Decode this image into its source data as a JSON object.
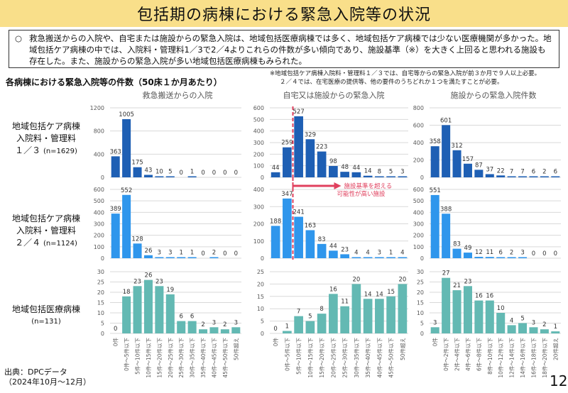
{
  "header": {
    "title": "包括期の病棟における緊急入院等の状況"
  },
  "summary": {
    "bullet": "○",
    "text": "救急搬送からの入院や、自宅または施設からの緊急入院は、地域包括医療病棟では多く、地域包括ケア病棟では少ない医療機関が多かった。地域包括ケア病棟の中では、入院料・管理料1／3で2／4よりこれらの件数が多い傾向であり、施設基準（※）を大きく上回ると思われる施設も存在した。また、施設からの緊急入院が多い地域包括医療病棟もみられた。"
  },
  "note": {
    "line1": "※地域包括ケア病棟入院料・管理料１／３では、自宅等からの緊急入院が前３か月で９人以上必要。",
    "line2": "２／４では、在宅医療の提供等、他の要件のうちどれか１つを満たすことが必要。"
  },
  "subtitle": "各病棟における緊急入院等の件数（50床１か月あたり）",
  "columns": [
    {
      "title": "救急搬送からの入院"
    },
    {
      "title": "自宅又は施設からの緊急入院"
    },
    {
      "title": "施設からの緊急入院件数"
    }
  ],
  "rows": [
    {
      "line1": "地域包括ケア病棟",
      "line2": "入院料・管理料",
      "line3": "１／３",
      "n": "(n=1629)"
    },
    {
      "line1": "地域包括ケア病棟",
      "line2": "入院料・管理料",
      "line3": "２／４",
      "n": "(n=1124)"
    },
    {
      "line1": "地域包括医療病棟",
      "line2": "",
      "line3": "",
      "n": "(n=131)"
    }
  ],
  "annotation": {
    "text_line1": "施設基準を超える",
    "text_line2": "可能性が高い施設",
    "color": "#e0405e"
  },
  "colors": {
    "row1": "#1e5fb4",
    "row2": "#2f96ec",
    "row3": "#63b9b3",
    "grid": "#d9d9d9",
    "axis_text": "#595959"
  },
  "source": {
    "line1": "出典：DPCデータ",
    "line2": "（2024年10月～12月）"
  },
  "page_number": "12",
  "chart_data": [
    {
      "type": "bar",
      "id": "r1c1",
      "title": "救急搬送からの入院",
      "row": "地域包括ケア病棟 入院料・管理料 1／3 (n=1629)",
      "categories": [
        "0件",
        "0件～5件以下",
        "5件～10件以下",
        "10件～15件以下",
        "15件～20件以下",
        "20件～25件以下",
        "25件～30件以下",
        "30件～35件以下",
        "35件～40件以下",
        "40件～45件以下",
        "45件～50件以下",
        "50件超え"
      ],
      "values": [
        363,
        1005,
        175,
        43,
        10,
        5,
        0,
        1,
        0,
        0,
        0,
        0
      ],
      "ylim": [
        0,
        1200
      ],
      "yticks": [
        0,
        400,
        800,
        1200
      ]
    },
    {
      "type": "bar",
      "id": "r1c2",
      "title": "自宅又は施設からの緊急入院",
      "row": "地域包括ケア病棟 入院料・管理料 1／3 (n=1629)",
      "categories": [
        "0件",
        "0件～5件以下",
        "5件～10件以下",
        "10件～15件以下",
        "15件～20件以下",
        "20件～25件以下",
        "25件～30件以下",
        "30件～35件以下",
        "35件～40件以下",
        "40件～45件以下",
        "45件～50件以下",
        "50件超え"
      ],
      "values": [
        44,
        259,
        527,
        329,
        223,
        98,
        48,
        44,
        14,
        8,
        5,
        3
      ],
      "ylim": [
        0,
        600
      ],
      "yticks": [
        0,
        100,
        200,
        300,
        400,
        500,
        600
      ],
      "threshold_after_index": 1
    },
    {
      "type": "bar",
      "id": "r1c3",
      "title": "施設からの緊急入院件数",
      "row": "地域包括ケア病棟 入院料・管理料 1／3 (n=1629)",
      "categories": [
        "0件",
        "0件～2件以下",
        "2件～4件以下",
        "4件～6件以下",
        "6件～8件以下",
        "8件～10件以下",
        "10件～12件以下",
        "12件～14件以下",
        "14件～16件以下",
        "16件～18件以下",
        "18件～20件以下",
        "20件超え"
      ],
      "values": [
        358,
        601,
        312,
        157,
        87,
        37,
        22,
        7,
        7,
        6,
        2,
        6
      ],
      "ylim": [
        0,
        800
      ],
      "yticks": [
        0,
        200,
        400,
        600,
        800
      ]
    },
    {
      "type": "bar",
      "id": "r2c1",
      "title": "救急搬送からの入院",
      "row": "地域包括ケア病棟 入院料・管理料 2／4 (n=1124)",
      "categories": [
        "0件",
        "0件～5件以下",
        "5件～10件以下",
        "10件～15件以下",
        "15件～20件以下",
        "20件～25件以下",
        "25件～30件以下",
        "30件～35件以下",
        "35件～40件以下",
        "40件～45件以下",
        "45件～50件以下",
        "50件超え"
      ],
      "values": [
        389,
        552,
        128,
        26,
        3,
        3,
        1,
        1,
        0,
        2,
        0,
        0
      ],
      "ylim": [
        0,
        600
      ],
      "yticks": [
        0,
        100,
        200,
        300,
        400,
        500,
        600
      ]
    },
    {
      "type": "bar",
      "id": "r2c2",
      "title": "自宅又は施設からの緊急入院",
      "row": "地域包括ケア病棟 入院料・管理料 2／4 (n=1124)",
      "categories": [
        "0件",
        "0件～5件以下",
        "5件～10件以下",
        "10件～15件以下",
        "15件～20件以下",
        "20件～25件以下",
        "25件～30件以下",
        "30件～35件以下",
        "35件～40件以下",
        "40件～45件以下",
        "45件～50件以下",
        "50件超え"
      ],
      "values": [
        188,
        347,
        241,
        163,
        83,
        44,
        23,
        4,
        4,
        3,
        1,
        4
      ],
      "ylim": [
        0,
        400
      ],
      "yticks": [
        0,
        100,
        200,
        300,
        400
      ],
      "threshold_after_index": 1,
      "annotation": "施設基準を超える可能性が高い施設"
    },
    {
      "type": "bar",
      "id": "r2c3",
      "title": "施設からの緊急入院件数",
      "row": "地域包括ケア病棟 入院料・管理料 2／4 (n=1124)",
      "categories": [
        "0件",
        "0件～2件以下",
        "2件～4件以下",
        "4件～6件以下",
        "6件～8件以下",
        "8件～10件以下",
        "10件～12件以下",
        "12件～14件以下",
        "14件～16件以下",
        "16件～18件以下",
        "18件～20件以下",
        "20件超え"
      ],
      "values": [
        551,
        388,
        83,
        49,
        12,
        11,
        6,
        2,
        3,
        0,
        0,
        0
      ],
      "ylim": [
        0,
        600
      ],
      "yticks": [
        0,
        100,
        200,
        300,
        400,
        500,
        600
      ]
    },
    {
      "type": "bar",
      "id": "r3c1",
      "title": "救急搬送からの入院",
      "row": "地域包括医療病棟 (n=131)",
      "categories": [
        "0件",
        "0件～5件以下",
        "5件～10件以下",
        "10件～15件以下",
        "15件～20件以下",
        "20件～25件以下",
        "25件～30件以下",
        "30件～35件以下",
        "35件～40件以下",
        "40件～45件以下",
        "45件～50件以下",
        "50件超え"
      ],
      "values": [
        0,
        18,
        23,
        26,
        23,
        19,
        6,
        6,
        2,
        3,
        2,
        3
      ],
      "ylim": [
        0,
        30
      ],
      "yticks": [
        0,
        5,
        10,
        15,
        20,
        25,
        30
      ]
    },
    {
      "type": "bar",
      "id": "r3c2",
      "title": "自宅又は施設からの緊急入院",
      "row": "地域包括医療病棟 (n=131)",
      "categories": [
        "0件",
        "0件～5件以下",
        "5件～10件以下",
        "10件～15件以下",
        "15件～20件以下",
        "20件～25件以下",
        "25件～30件以下",
        "30件～35件以下",
        "35件～40件以下",
        "40件～45件以下",
        "45件～50件以下",
        "50件超え"
      ],
      "values": [
        0,
        1,
        7,
        5,
        8,
        16,
        11,
        20,
        14,
        14,
        15,
        20
      ],
      "ylim": [
        0,
        25
      ],
      "yticks": [
        0,
        5,
        10,
        15,
        20,
        25
      ]
    },
    {
      "type": "bar",
      "id": "r3c3",
      "title": "施設からの緊急入院件数",
      "row": "地域包括医療病棟 (n=131)",
      "categories": [
        "0件",
        "0件～2件以下",
        "2件～4件以下",
        "4件～6件以下",
        "6件～8件以下",
        "8件～10件以下",
        "10件～12件以下",
        "12件～14件以下",
        "14件～16件以下",
        "16件～18件以下",
        "18件～20件以下",
        "20件超え"
      ],
      "values": [
        3,
        27,
        21,
        23,
        16,
        16,
        10,
        4,
        5,
        3,
        2,
        1
      ],
      "ylim": [
        0,
        30
      ],
      "yticks": [
        0,
        5,
        10,
        15,
        20,
        25,
        30
      ]
    }
  ]
}
